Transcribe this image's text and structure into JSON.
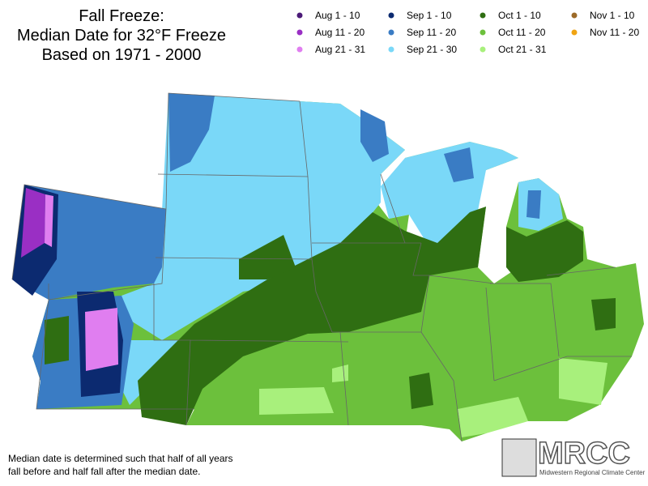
{
  "header": {
    "title_lines": [
      "Fall Freeze:",
      "Median Date for 32°F Freeze",
      "Based on 1971 - 2000"
    ]
  },
  "legend": [
    {
      "label": "Aug 1 - 10",
      "color": "#4b1a78"
    },
    {
      "label": "Aug 11 - 20",
      "color": "#9a2fc4"
    },
    {
      "label": "Aug 21 - 31",
      "color": "#e07ef0"
    },
    {
      "label": "Sep 1 - 10",
      "color": "#0c2a70"
    },
    {
      "label": "Sep 11 - 20",
      "color": "#3a7cc4"
    },
    {
      "label": "Sep 21 - 30",
      "color": "#7ad8f8"
    },
    {
      "label": "Oct 1 - 10",
      "color": "#2f6e12"
    },
    {
      "label": "Oct 11 - 20",
      "color": "#6cc03c"
    },
    {
      "label": "Oct 21 - 31",
      "color": "#a8f07c"
    },
    {
      "label": "Nov 1 - 10",
      "color": "#9c6a28"
    },
    {
      "label": "Nov 11 - 20",
      "color": "#f0a412"
    }
  ],
  "footnote": [
    "Median date is determined such that half of all years",
    "fall before and half fall after the median date."
  ],
  "logo": {
    "abbreviation": "MRCC",
    "name": "Midwestern Regional Climate Center"
  }
}
